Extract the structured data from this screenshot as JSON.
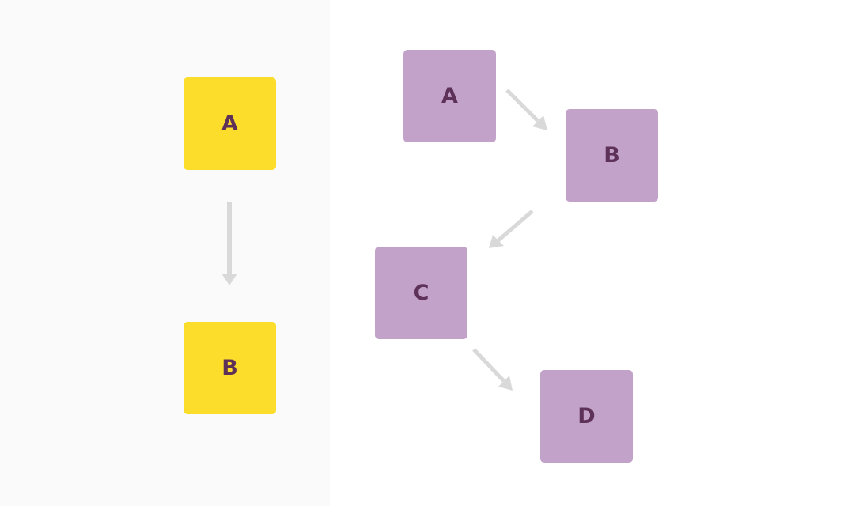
{
  "colors": {
    "left_background": "#fafafa",
    "right_background": "#ffffff",
    "yellow_node": "#fddd2b",
    "purple_node": "#c3a2ca",
    "node_text": "#5e3159",
    "arrow": "#d9d9d9"
  },
  "left_diagram": {
    "nodes": [
      {
        "label": "A"
      },
      {
        "label": "B"
      }
    ],
    "edges": [
      {
        "from": "A",
        "to": "B"
      }
    ]
  },
  "right_diagram": {
    "nodes": [
      {
        "label": "A"
      },
      {
        "label": "B"
      },
      {
        "label": "C"
      },
      {
        "label": "D"
      }
    ],
    "edges": [
      {
        "from": "A",
        "to": "B"
      },
      {
        "from": "B",
        "to": "C"
      },
      {
        "from": "C",
        "to": "D"
      }
    ]
  }
}
